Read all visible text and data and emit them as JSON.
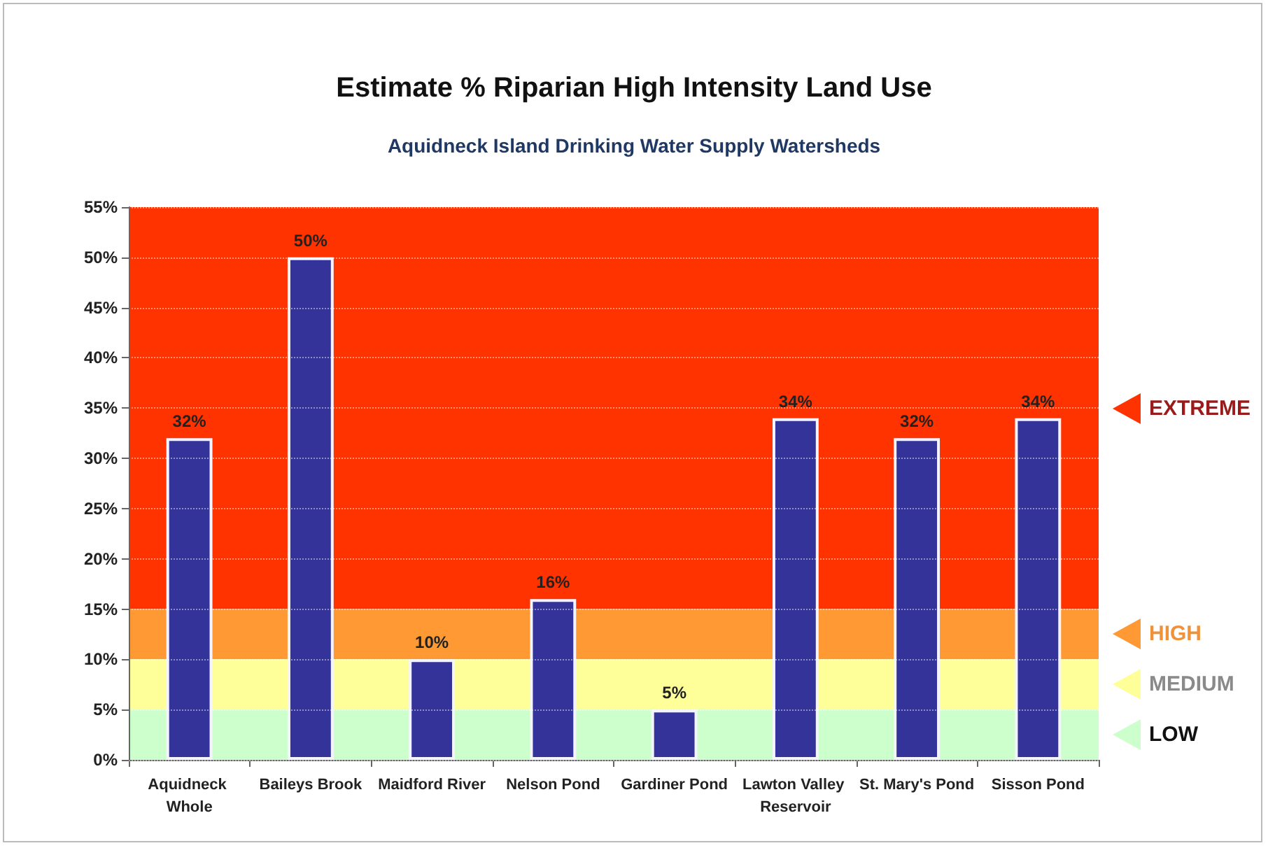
{
  "chart_data": {
    "type": "bar",
    "title": "Estimate % Riparian High Intensity Land Use",
    "subtitle": "Aquidneck Island Drinking Water Supply Watersheds",
    "categories": [
      "Aquidneck Whole",
      "Baileys Brook",
      "Maidford River",
      "Nelson Pond",
      "Gardiner Pond",
      "Lawton Valley Reservoir",
      "St. Mary's Pond",
      "Sisson Pond"
    ],
    "values": [
      32,
      50,
      10,
      16,
      5,
      34,
      32,
      34
    ],
    "value_labels": [
      "32%",
      "50%",
      "10%",
      "16%",
      "5%",
      "34%",
      "32%",
      "34%"
    ],
    "color": "#333399",
    "ylim": [
      0,
      55
    ],
    "yticks": [
      {
        "value": 0,
        "label": "0%"
      },
      {
        "value": 5,
        "label": "5%"
      },
      {
        "value": 10,
        "label": "10%"
      },
      {
        "value": 15,
        "label": "15%"
      },
      {
        "value": 20,
        "label": "20%"
      },
      {
        "value": 25,
        "label": "25%"
      },
      {
        "value": 30,
        "label": "30%"
      },
      {
        "value": 35,
        "label": "35%"
      },
      {
        "value": 40,
        "label": "40%"
      },
      {
        "value": 45,
        "label": "45%"
      },
      {
        "value": 50,
        "label": "50%"
      },
      {
        "value": 55,
        "label": "55%"
      }
    ],
    "grid": "y",
    "bands": [
      {
        "axis": "y",
        "from": 15,
        "to": 55,
        "label": "EXTREME",
        "color": "#ff3300"
      },
      {
        "axis": "y",
        "from": 10,
        "to": 15,
        "label": "HIGH",
        "color": "#ff9933"
      },
      {
        "axis": "y",
        "from": 5,
        "to": 10,
        "label": "MEDIUM",
        "color": "#ffff99"
      },
      {
        "axis": "y",
        "from": 0,
        "to": 5,
        "label": "LOW",
        "color": "#ccffcc"
      }
    ]
  }
}
